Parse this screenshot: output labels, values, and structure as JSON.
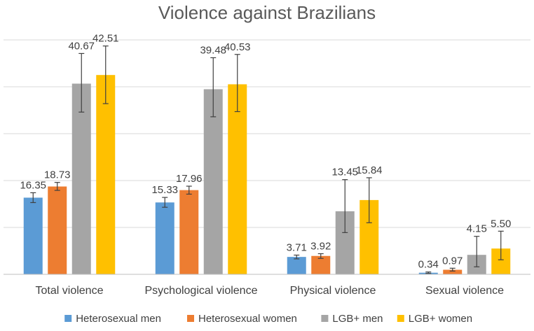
{
  "chart_data": {
    "type": "bar",
    "title": "Violence against Brazilians",
    "xlabel": "",
    "ylabel": "",
    "ylim": [
      0,
      50
    ],
    "grid": true,
    "legend_position": "bottom",
    "categories": [
      "Total violence",
      "Psychological violence",
      "Physical violence",
      "Sexual violence"
    ],
    "series": [
      {
        "name": "Heterosexual men",
        "color": "#5B9BD5",
        "values": [
          16.35,
          15.33,
          3.71,
          0.34
        ],
        "labels": [
          "16.35",
          "15.33",
          "3.71",
          "0.34"
        ],
        "error_low": [
          15.3,
          14.3,
          3.3,
          0.2
        ],
        "error_high": [
          17.4,
          16.4,
          4.1,
          0.5
        ]
      },
      {
        "name": "Heterosexual women",
        "color": "#ED7D31",
        "values": [
          18.73,
          17.96,
          3.92,
          0.97
        ],
        "labels": [
          "18.73",
          "17.96",
          "3.92",
          "0.97"
        ],
        "error_low": [
          17.9,
          17.1,
          3.4,
          0.7
        ],
        "error_high": [
          19.6,
          18.8,
          4.4,
          1.3
        ]
      },
      {
        "name": "LGB+ men",
        "color": "#A5A5A5",
        "values": [
          40.67,
          39.48,
          13.45,
          4.15
        ],
        "labels": [
          "40.67",
          "39.48",
          "13.45",
          "4.15"
        ],
        "error_low": [
          34.6,
          33.6,
          8.9,
          1.6
        ],
        "error_high": [
          47.1,
          46.2,
          20.2,
          8.1
        ]
      },
      {
        "name": "LGB+ women",
        "color": "#FFC000",
        "values": [
          42.51,
          40.53,
          15.84,
          5.5
        ],
        "labels": [
          "42.51",
          "40.53",
          "15.84",
          "5.50"
        ],
        "error_low": [
          36.4,
          34.7,
          11.0,
          3.1
        ],
        "error_high": [
          48.7,
          46.9,
          20.6,
          9.2
        ]
      }
    ]
  }
}
